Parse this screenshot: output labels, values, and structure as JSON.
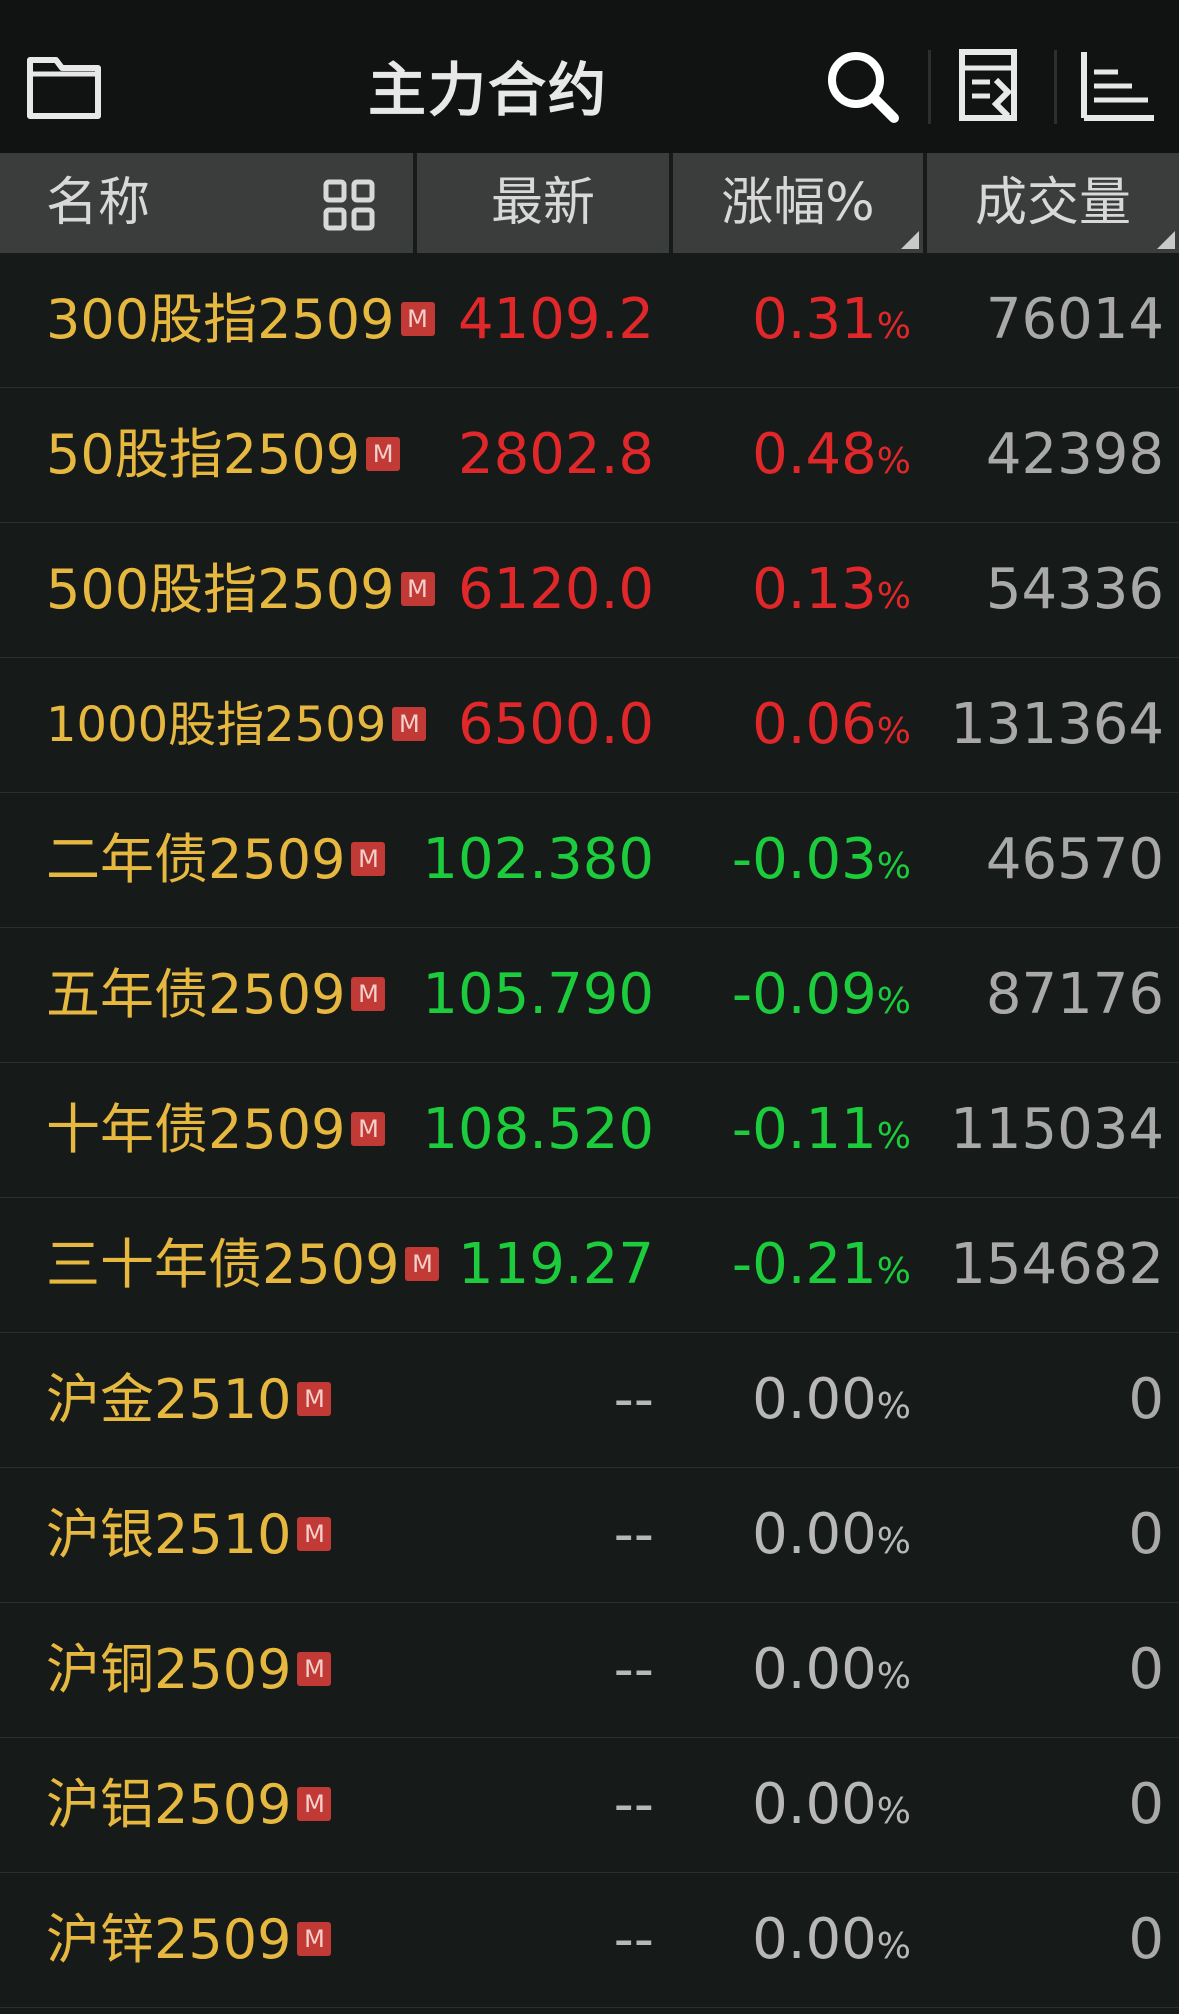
{
  "header": {
    "title": "主力合约",
    "icons": [
      "folder-icon",
      "search-icon",
      "calculator-icon",
      "list-sort-icon"
    ]
  },
  "columns": {
    "name": "名称",
    "latest": "最新",
    "change": "涨幅%",
    "volume": "成交量"
  },
  "badge": "M",
  "colors": {
    "up": "#e0272a",
    "down": "#1ccc3c",
    "flat": "#b8b8b8",
    "name": "#e7b840"
  },
  "rows": [
    {
      "name": "300股指2509",
      "latest": "4109.2",
      "change": "0.31",
      "volume": "76014",
      "trend": "up"
    },
    {
      "name": "50股指2509",
      "latest": "2802.8",
      "change": "0.48",
      "volume": "42398",
      "trend": "up"
    },
    {
      "name": "500股指2509",
      "latest": "6120.0",
      "change": "0.13",
      "volume": "54336",
      "trend": "up"
    },
    {
      "name": "1000股指2509",
      "latest": "6500.0",
      "change": "0.06",
      "volume": "131364",
      "trend": "up"
    },
    {
      "name": "二年债2509",
      "latest": "102.380",
      "change": "-0.03",
      "volume": "46570",
      "trend": "down"
    },
    {
      "name": "五年债2509",
      "latest": "105.790",
      "change": "-0.09",
      "volume": "87176",
      "trend": "down"
    },
    {
      "name": "十年债2509",
      "latest": "108.520",
      "change": "-0.11",
      "volume": "115034",
      "trend": "down"
    },
    {
      "name": "三十年债2509",
      "latest": "119.27",
      "change": "-0.21",
      "volume": "154682",
      "trend": "down"
    },
    {
      "name": "沪金2510",
      "latest": "--",
      "change": "0.00",
      "volume": "0",
      "trend": "flat"
    },
    {
      "name": "沪银2510",
      "latest": "--",
      "change": "0.00",
      "volume": "0",
      "trend": "flat"
    },
    {
      "name": "沪铜2509",
      "latest": "--",
      "change": "0.00",
      "volume": "0",
      "trend": "flat"
    },
    {
      "name": "沪铝2509",
      "latest": "--",
      "change": "0.00",
      "volume": "0",
      "trend": "flat"
    },
    {
      "name": "沪锌2509",
      "latest": "--",
      "change": "0.00",
      "volume": "0",
      "trend": "flat"
    }
  ]
}
